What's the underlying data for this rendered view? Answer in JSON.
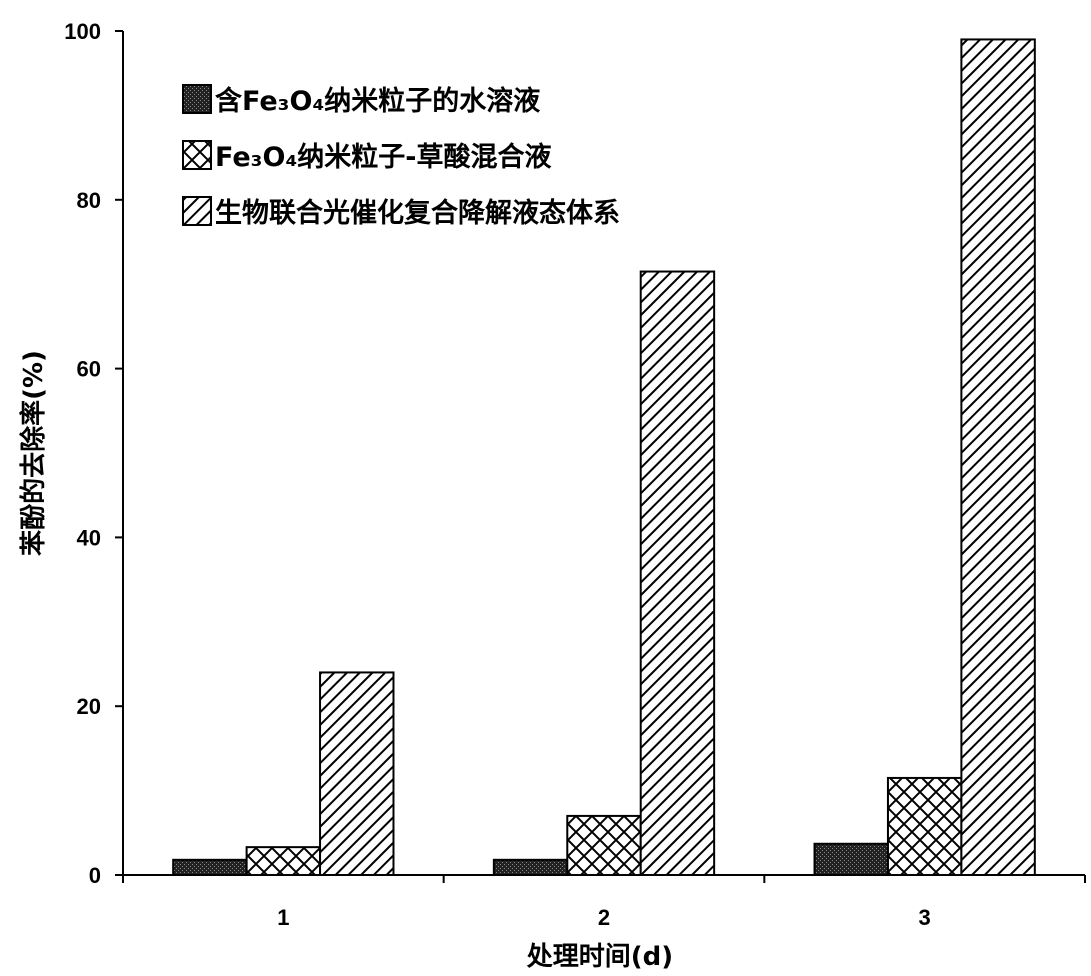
{
  "chart_data": {
    "type": "bar",
    "categories": [
      "1",
      "2",
      "3"
    ],
    "series": [
      {
        "name": "含Fe₃O₄纳米粒子的水溶液",
        "values": [
          1.8,
          1.8,
          3.7
        ],
        "pattern": "dense-dot"
      },
      {
        "name": "Fe₃O₄纳米粒子-草酸混合液",
        "values": [
          3.3,
          7.0,
          11.5
        ],
        "pattern": "crosshatch"
      },
      {
        "name": "生物联合光催化复合降解液态体系",
        "values": [
          24.0,
          71.5,
          99.0
        ],
        "pattern": "diagonal"
      }
    ],
    "xlabel": "处理时间(d)",
    "ylabel": "苯酚的去除率(%)",
    "ylim": [
      0,
      100
    ],
    "yticks": [
      "0",
      "20",
      "40",
      "60",
      "80",
      "100"
    ],
    "legend_position": "top-left",
    "grid": false,
    "colors": {
      "bar_stroke": "#000000",
      "pattern": "#000000",
      "background": "#ffffff"
    }
  }
}
